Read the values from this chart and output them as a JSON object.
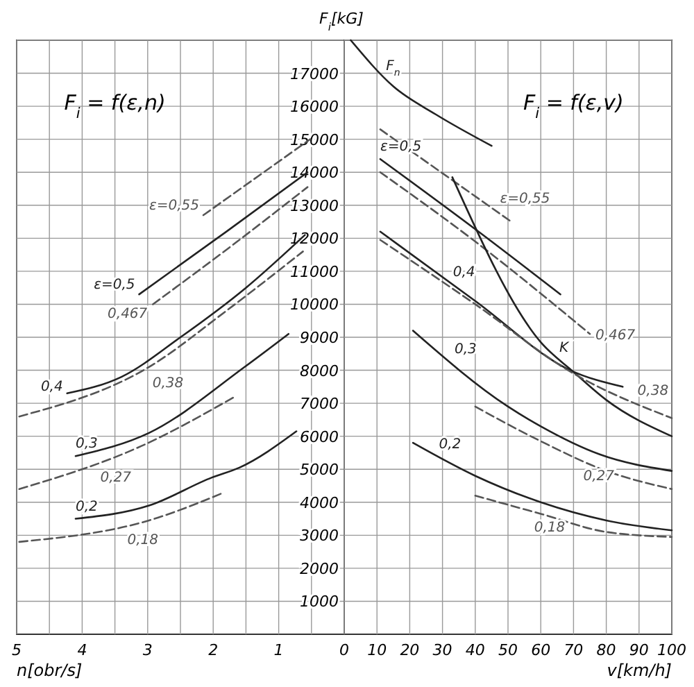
{
  "chart_data": [
    {
      "type": "line",
      "title": "F$_{i}$ = f(ε,n)",
      "xlabel": "n[obr/s]",
      "ylabel": "F$_{i}$[kG]",
      "xlim": [
        5,
        0
      ],
      "xticks": [
        5,
        {
          "value": 4.5,
          "label": null
        },
        4,
        {
          "value": 3.5,
          "label": null
        },
        3,
        {
          "value": 2.5,
          "label": null
        },
        2,
        {
          "value": 1.5,
          "label": null
        },
        1,
        {
          "value": 0.5,
          "label": null
        },
        0
      ],
      "ylim": [
        0,
        18000
      ],
      "yticks": [
        1000,
        2000,
        3000,
        4000,
        5000,
        6000,
        7000,
        8000,
        9000,
        10000,
        11000,
        12000,
        13000,
        14000,
        15000,
        16000,
        17000,
        {
          "value": 18000,
          "label": null
        }
      ],
      "grid": true,
      "legend": false,
      "series": [
        {
          "name": "ε=0,55",
          "color": "#555555",
          "line_style": "dashed",
          "x": [
            2.15,
            1.3,
            0.52
          ],
          "values": [
            12700,
            13900,
            15000
          ]
        },
        {
          "name": "ε=0,5",
          "color": "#222222",
          "line_style": "solid",
          "x": [
            3.13,
            1.8,
            0.56
          ],
          "values": [
            10300,
            12200,
            14000
          ]
        },
        {
          "name": "0,467",
          "color": "#555555",
          "line_style": "dashed",
          "x": [
            2.92,
            1.7,
            0.56
          ],
          "values": [
            10000,
            11800,
            13550
          ]
        },
        {
          "name": "0,4",
          "color": "#222222",
          "line_style": "solid",
          "x": [
            4.23,
            3.4,
            2.5,
            1.5,
            0.6
          ],
          "values": [
            7300,
            7800,
            9000,
            10500,
            12100
          ]
        },
        {
          "name": "0,38",
          "color": "#555555",
          "line_style": "dashed",
          "x": [
            4.96,
            2.98,
            1.8,
            0.63
          ],
          "values": [
            6600,
            8100,
            9800,
            11600
          ]
        },
        {
          "name": "0,3",
          "color": "#222222",
          "line_style": "solid",
          "x": [
            4.1,
            2.98,
            1.52,
            0.85
          ],
          "values": [
            5400,
            6100,
            8100,
            9100
          ]
        },
        {
          "name": "0,27",
          "color": "#555555",
          "line_style": "dashed",
          "x": [
            4.96,
            3.1,
            1.67
          ],
          "values": [
            4400,
            5700,
            7200
          ]
        },
        {
          "name": "0,2",
          "color": "#222222",
          "line_style": "solid",
          "x": [
            4.1,
            2.98,
            2.02,
            1.6,
            0.73
          ],
          "values": [
            3500,
            3900,
            4750,
            5050,
            6150
          ]
        },
        {
          "name": "0,18",
          "color": "#555555",
          "line_style": "dashed",
          "x": [
            4.96,
            2.98,
            1.83
          ],
          "values": [
            2800,
            3450,
            4300
          ]
        }
      ]
    },
    {
      "type": "line",
      "title": "F$_{i}$ = f(ε,v)",
      "xlabel": "v[km/h]",
      "xlim": [
        0,
        100
      ],
      "xticks": [
        {
          "value": 0,
          "label": null
        },
        10,
        20,
        30,
        40,
        50,
        60,
        70,
        80,
        90,
        100
      ],
      "ylim": [
        0,
        18000
      ],
      "yticks": [
        1000,
        2000,
        3000,
        4000,
        5000,
        6000,
        7000,
        8000,
        9000,
        10000,
        11000,
        12000,
        13000,
        14000,
        15000,
        16000,
        17000,
        {
          "value": 18000,
          "label": null
        }
      ],
      "tick_labels": "x",
      "grid": true,
      "legend": false,
      "series": [
        {
          "name": "F$_{n}$",
          "color": "#222222",
          "line_style": "solid",
          "x": [
            2,
            15,
            28,
            45
          ],
          "values": [
            18000,
            16600,
            15750,
            14800
          ]
        },
        {
          "name": "ε=0,55",
          "color": "#555555",
          "line_style": "dashed",
          "x": [
            11,
            51
          ],
          "values": [
            15300,
            12500
          ]
        },
        {
          "name": "ε=0,5",
          "color": "#222222",
          "line_style": "solid",
          "x": [
            11,
            41,
            66
          ],
          "values": [
            14400,
            12200,
            10300
          ]
        },
        {
          "name": "0,467",
          "color": "#555555",
          "line_style": "dashed",
          "x": [
            11,
            40,
            75
          ],
          "values": [
            14000,
            11900,
            9100
          ]
        },
        {
          "name": "K",
          "color": "#222222",
          "line_style": "solid",
          "x": [
            33,
            60,
            70,
            80,
            100
          ],
          "values": [
            13850,
            8850,
            7950,
            7100,
            6000
          ]
        },
        {
          "name": "0,4",
          "color": "#222222",
          "line_style": "solid",
          "x": [
            11,
            40,
            69,
            85
          ],
          "values": [
            12200,
            10100,
            8000,
            7500
          ]
        },
        {
          "name": "0,38",
          "color": "#555555",
          "line_style": "dashed",
          "x": [
            11,
            40,
            70,
            100
          ],
          "values": [
            11950,
            10000,
            7900,
            6550
          ]
        },
        {
          "name": "0,3",
          "color": "#222222",
          "line_style": "solid",
          "x": [
            21,
            50,
            60,
            78,
            100
          ],
          "values": [
            9200,
            6900,
            6300,
            5450,
            4950
          ]
        },
        {
          "name": "0,27",
          "color": "#555555",
          "line_style": "dashed",
          "x": [
            40,
            60,
            80,
            100
          ],
          "values": [
            6900,
            5850,
            4950,
            4400
          ]
        },
        {
          "name": "0,2",
          "color": "#222222",
          "line_style": "solid",
          "x": [
            21,
            40,
            60,
            80,
            100
          ],
          "values": [
            5800,
            4800,
            4000,
            3450,
            3150
          ]
        },
        {
          "name": "0,18",
          "color": "#555555",
          "line_style": "dashed",
          "x": [
            40,
            60,
            80,
            100
          ],
          "values": [
            4200,
            3650,
            3100,
            2950
          ]
        }
      ]
    }
  ]
}
